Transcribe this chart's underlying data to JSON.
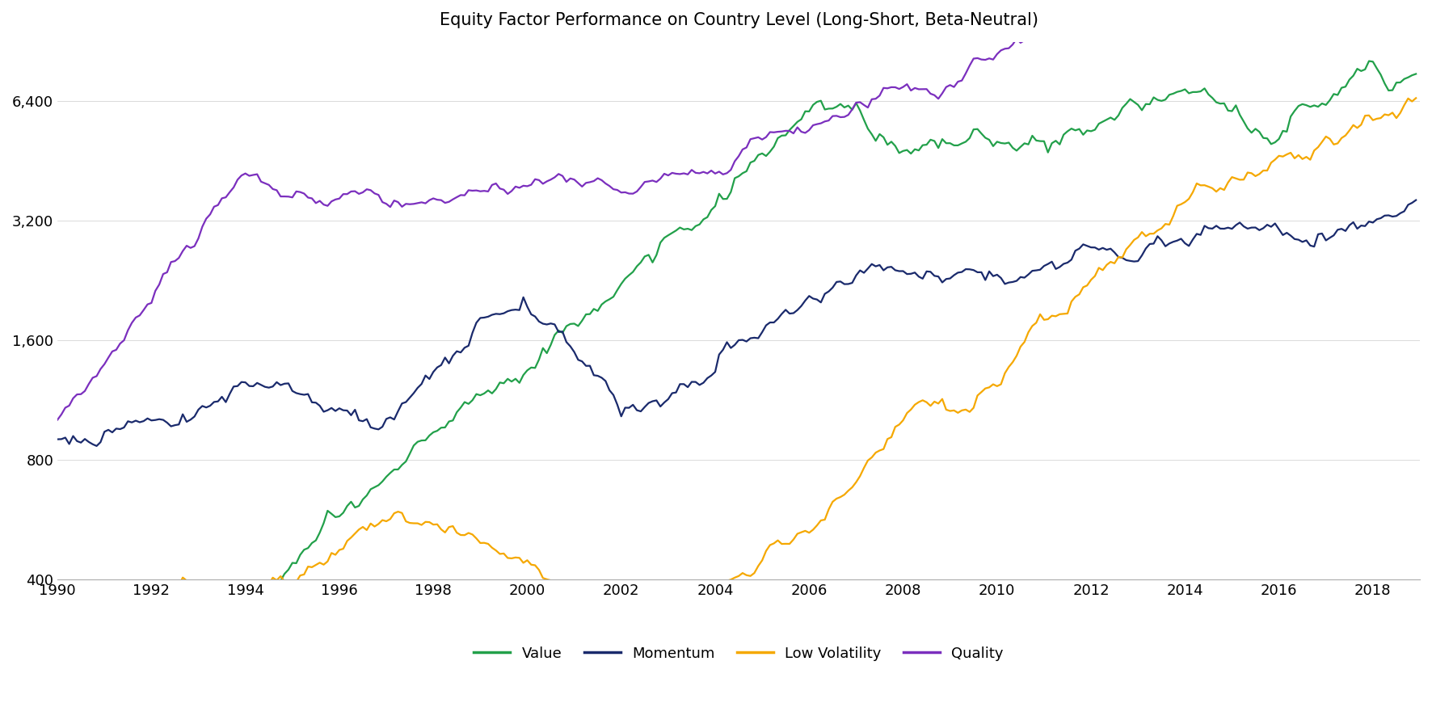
{
  "title": "Equity Factor Performance on Country Level (Long-Short, Beta-Neutral)",
  "colors": {
    "Value": "#22a04a",
    "Momentum": "#1a2a6c",
    "Low Volatility": "#f5a800",
    "Quality": "#7b2fbe"
  },
  "legend_labels": [
    "Value",
    "Momentum",
    "Low Volatility",
    "Quality"
  ],
  "yticks": [
    400,
    800,
    1600,
    3200,
    6400
  ],
  "ytick_labels": [
    "400",
    "800",
    "1,600",
    "3,200",
    "6,400"
  ],
  "xmin": 1990.0,
  "xmax": 2019.0,
  "xticks": [
    1990,
    1992,
    1994,
    1996,
    1998,
    2000,
    2002,
    2004,
    2006,
    2008,
    2010,
    2012,
    2014,
    2016,
    2018
  ],
  "background_color": "#ffffff",
  "line_width": 1.6
}
